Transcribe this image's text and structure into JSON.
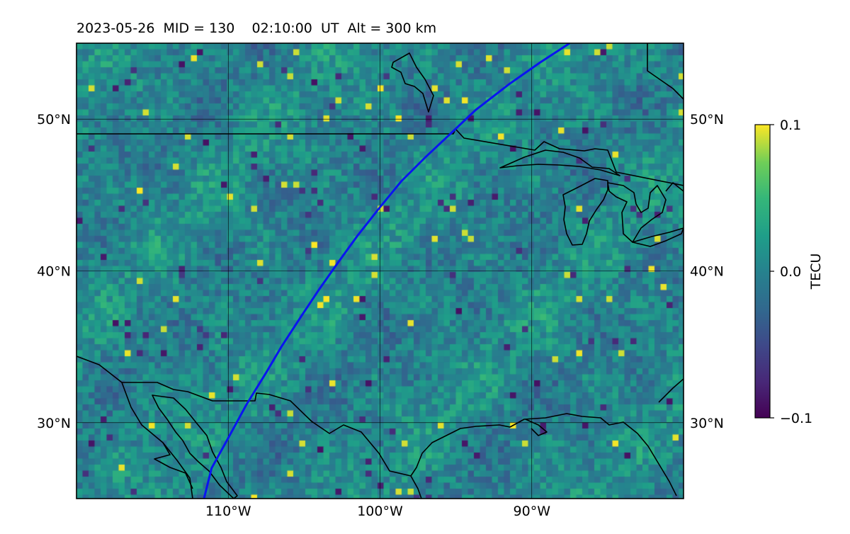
{
  "title": "2023-05-26  MID = 130    02:10:00  UT  Alt = 300 km",
  "map": {
    "lon_range": [
      -120,
      -80
    ],
    "lat_range": [
      25,
      55
    ],
    "lon_ticks": [
      {
        "value": -110,
        "label": "110°W"
      },
      {
        "value": -100,
        "label": "100°W"
      },
      {
        "value": -90,
        "label": "90°W"
      }
    ],
    "lat_ticks": [
      {
        "value": 50,
        "label": "50°N"
      },
      {
        "value": 40,
        "label": "40°N"
      },
      {
        "value": 30,
        "label": "30°N"
      }
    ],
    "grid": true,
    "field_colormap": "viridis",
    "track_color": "#0a14f0",
    "track": [
      [
        -111.6,
        25
      ],
      [
        -111.1,
        27.0
      ],
      [
        -110.0,
        29.0
      ],
      [
        -108.8,
        31.2
      ],
      [
        -107.5,
        33.3
      ],
      [
        -106.5,
        35.0
      ],
      [
        -105.2,
        37.0
      ],
      [
        -104.0,
        38.8
      ],
      [
        -102.8,
        40.5
      ],
      [
        -101.5,
        42.3
      ],
      [
        -100.0,
        44.2
      ],
      [
        -98.6,
        45.9
      ],
      [
        -97.0,
        47.5
      ],
      [
        -95.5,
        48.9
      ],
      [
        -93.7,
        50.6
      ],
      [
        -91.5,
        52.3
      ],
      [
        -89.5,
        53.7
      ],
      [
        -87.5,
        55.0
      ]
    ]
  },
  "colorbar": {
    "label": "TECU",
    "min": -0.1,
    "max": 0.1,
    "ticks": [
      {
        "value": 0.1,
        "label": "0.1"
      },
      {
        "value": 0.0,
        "label": "0.0"
      },
      {
        "value": -0.1,
        "label": "−0.1"
      }
    ],
    "colormap": "viridis"
  }
}
